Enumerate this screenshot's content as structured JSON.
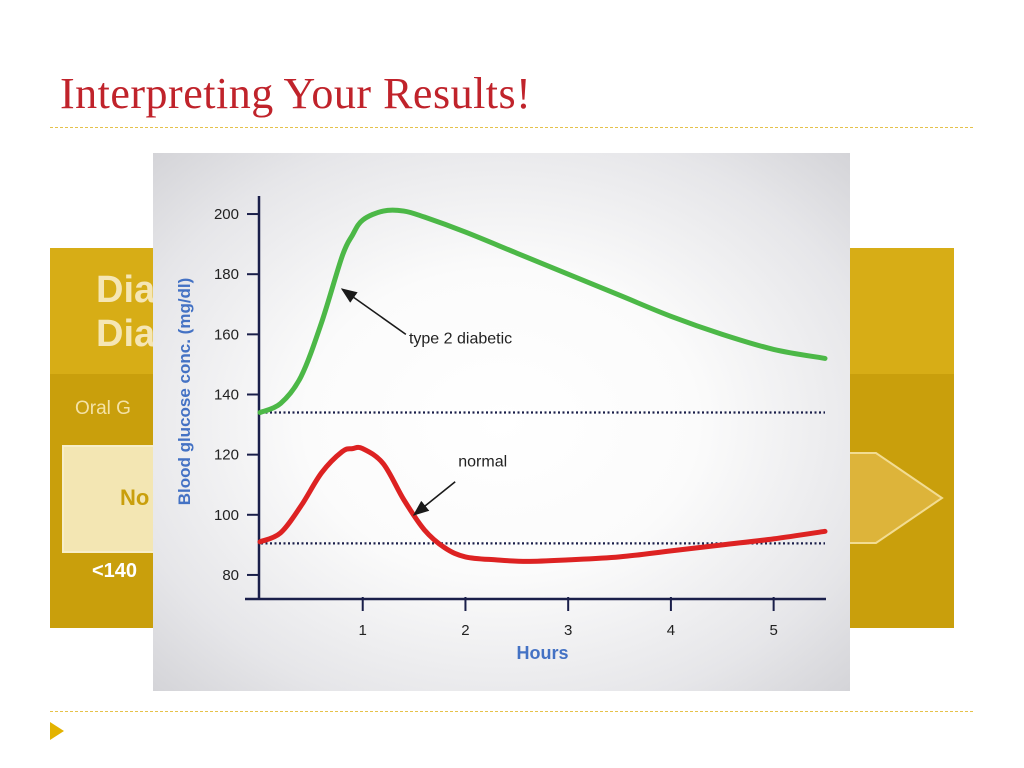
{
  "slide": {
    "title": "Interpreting Your Results!"
  },
  "background_graphic": {
    "title": "Dia\nDia",
    "subtitle": "Oral G",
    "box_label": "No",
    "footer": "<140",
    "colors": {
      "panel": "#c99f0c",
      "band": "#d7ad16",
      "box": "#f3e6b3"
    }
  },
  "chart_data": {
    "type": "line",
    "xlabel": "Hours",
    "ylabel": "Blood glucose conc. (mg/dl)",
    "xlim": [
      0,
      5.5
    ],
    "ylim": [
      72,
      206
    ],
    "x_ticks": [
      1,
      2,
      3,
      4,
      5
    ],
    "y_ticks": [
      80,
      100,
      120,
      140,
      160,
      180,
      200
    ],
    "series": [
      {
        "name": "type 2 diabetic",
        "color": "#4cb847",
        "x": [
          0,
          0.2,
          0.4,
          0.6,
          0.8,
          0.9,
          1.0,
          1.2,
          1.4,
          1.6,
          2.0,
          2.5,
          3.0,
          3.5,
          4.0,
          4.5,
          5.0,
          5.5
        ],
        "y": [
          134,
          137,
          146,
          164,
          186,
          193,
          198,
          201,
          201,
          199,
          194,
          187,
          180,
          173,
          166,
          160,
          155,
          152
        ]
      },
      {
        "name": "normal",
        "color": "#dd2222",
        "x": [
          0,
          0.2,
          0.4,
          0.6,
          0.8,
          0.9,
          1.0,
          1.2,
          1.4,
          1.6,
          1.8,
          2.0,
          2.3,
          2.6,
          3.0,
          3.5,
          4.0,
          4.5,
          5.0,
          5.5
        ],
        "y": [
          91,
          94,
          103,
          114,
          121,
          122,
          122,
          117,
          105,
          95,
          89,
          86,
          85,
          84.5,
          85,
          86,
          88,
          90,
          92,
          94.5
        ]
      }
    ],
    "reference_lines": [
      {
        "y": 134,
        "style": "dotted"
      },
      {
        "y": 90.5,
        "style": "dotted"
      }
    ],
    "annotations": [
      {
        "text": "type 2 diabetic",
        "points_to": {
          "series": "type 2 diabetic",
          "x": 0.8,
          "y": 175
        }
      },
      {
        "text": "normal",
        "points_to": {
          "series": "normal",
          "x": 1.5,
          "y": 100
        }
      }
    ],
    "grid": false
  }
}
